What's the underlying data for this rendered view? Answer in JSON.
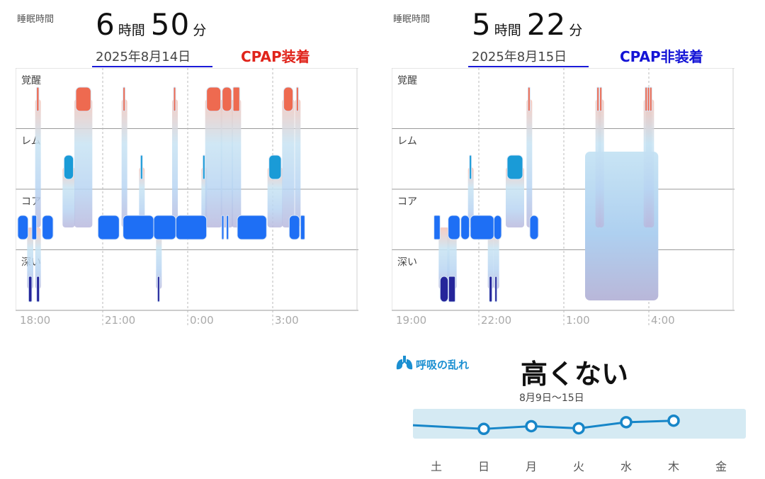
{
  "left": {
    "sleep_label": "睡眠時間",
    "hours": "6",
    "hours_unit": "時間",
    "minutes": "50",
    "minutes_unit": "分",
    "date": "2025年8月14日",
    "cpap_label": "CPAP装着",
    "cpap_color": "#e0241b",
    "date_underline_color": "#1a1ad8"
  },
  "right": {
    "sleep_label": "睡眠時間",
    "hours": "5",
    "hours_unit": "時間",
    "minutes": "22",
    "minutes_unit": "分",
    "date": "2025年8月15日",
    "cpap_label": "CPAP非装着",
    "cpap_color": "#1414d6",
    "date_underline_color": "#1a1ad8"
  },
  "respiratory": {
    "icon": "lungs-icon",
    "title": "呼吸の乱れ",
    "value": "高くない",
    "range": "8月9日〜15日"
  },
  "chart_data": [
    {
      "type": "sleep-stages",
      "stages": [
        "覚醒",
        "レム",
        "コア",
        "深い"
      ],
      "x_ticks": [
        "18:00",
        "21:00",
        "0:00",
        "3:00"
      ],
      "colors": {
        "awake": "#ee6a50",
        "rem": "#1a9bd7",
        "core": "#1e6ff5",
        "deep": "#25259a"
      },
      "segments": [
        {
          "stage": "awake",
          "start": "18:40",
          "end": "18:45"
        },
        {
          "stage": "core",
          "start": "18:00",
          "end": "18:22"
        },
        {
          "stage": "deep",
          "start": "18:23",
          "end": "18:30"
        },
        {
          "stage": "core",
          "start": "18:30",
          "end": "18:40"
        },
        {
          "stage": "deep",
          "start": "18:40",
          "end": "18:46"
        },
        {
          "stage": "core",
          "start": "18:52",
          "end": "19:15"
        },
        {
          "stage": "rem",
          "start": "19:38",
          "end": "19:58"
        },
        {
          "stage": "awake",
          "start": "20:03",
          "end": "20:35"
        },
        {
          "stage": "core",
          "start": "20:50",
          "end": "21:35"
        },
        {
          "stage": "awake",
          "start": "21:43",
          "end": "21:46"
        },
        {
          "stage": "core",
          "start": "21:43",
          "end": "22:48"
        },
        {
          "stage": "rem",
          "start": "22:20",
          "end": "22:23"
        },
        {
          "stage": "deep",
          "start": "22:56",
          "end": "23:00"
        },
        {
          "stage": "core",
          "start": "22:48",
          "end": "23:35"
        },
        {
          "stage": "awake",
          "start": "23:30",
          "end": "23:34"
        },
        {
          "stage": "core",
          "start": "23:35",
          "end": "0:40"
        },
        {
          "stage": "rem",
          "start": "0:32",
          "end": "0:35"
        },
        {
          "stage": "awake",
          "start": "0:40",
          "end": "1:10"
        },
        {
          "stage": "awake",
          "start": "1:13",
          "end": "1:33"
        },
        {
          "stage": "awake",
          "start": "1:36",
          "end": "1:50"
        },
        {
          "stage": "core",
          "start": "1:12",
          "end": "1:16"
        },
        {
          "stage": "core",
          "start": "1:22",
          "end": "1:26"
        },
        {
          "stage": "core",
          "start": "1:45",
          "end": "2:47"
        },
        {
          "stage": "rem",
          "start": "2:52",
          "end": "3:18"
        },
        {
          "stage": "awake",
          "start": "3:23",
          "end": "3:43"
        },
        {
          "stage": "awake",
          "start": "3:50",
          "end": "3:54"
        },
        {
          "stage": "core",
          "start": "3:35",
          "end": "3:57"
        },
        {
          "stage": "core",
          "start": "3:59",
          "end": "4:08"
        }
      ]
    },
    {
      "type": "sleep-stages",
      "stages": [
        "覚醒",
        "レム",
        "コア",
        "深い"
      ],
      "x_ticks": [
        "19:00",
        "22:00",
        "1:00",
        "4:00"
      ],
      "colors": {
        "awake": "#ee6a50",
        "rem": "#1a9bd7",
        "core": "#1e6ff5",
        "deep": "#25259a"
      },
      "segments": [
        {
          "stage": "core",
          "start": "20:25",
          "end": "20:38"
        },
        {
          "stage": "deep",
          "start": "20:38",
          "end": "20:55"
        },
        {
          "stage": "deep",
          "start": "20:56",
          "end": "21:10"
        },
        {
          "stage": "core",
          "start": "20:55",
          "end": "21:20"
        },
        {
          "stage": "core",
          "start": "21:22",
          "end": "21:40"
        },
        {
          "stage": "rem",
          "start": "21:40",
          "end": "21:44"
        },
        {
          "stage": "core",
          "start": "21:42",
          "end": "22:32"
        },
        {
          "stage": "deep",
          "start": "22:22",
          "end": "22:28"
        },
        {
          "stage": "core",
          "start": "22:32",
          "end": "22:48"
        },
        {
          "stage": "rem",
          "start": "23:00",
          "end": "23:33"
        },
        {
          "stage": "deep",
          "start": "22:34",
          "end": "22:38"
        },
        {
          "stage": "awake",
          "start": "23:44",
          "end": "23:47"
        },
        {
          "stage": "core",
          "start": "23:48",
          "end": "24:06"
        },
        {
          "stage": "missing",
          "start": "1:45",
          "end": "4:20"
        },
        {
          "stage": "awake",
          "start": "2:10",
          "end": "2:13"
        },
        {
          "stage": "awake",
          "start": "2:16",
          "end": "2:19"
        },
        {
          "stage": "awake",
          "start": "3:52",
          "end": "3:55"
        },
        {
          "stage": "awake",
          "start": "3:57",
          "end": "4:00"
        },
        {
          "stage": "awake",
          "start": "4:02",
          "end": "4:05"
        }
      ]
    },
    {
      "type": "line",
      "categories": [
        "土",
        "日",
        "月",
        "火",
        "水",
        "木",
        "金"
      ],
      "values": [
        null,
        0.33,
        0.42,
        0.35,
        0.55,
        0.6,
        null
      ],
      "lead_in_value": 0.45,
      "ylim": [
        -0.5,
        1.5
      ],
      "band": [
        0,
        1
      ],
      "line_color": "#1786c8",
      "band_color": "#d5eaf3"
    }
  ]
}
